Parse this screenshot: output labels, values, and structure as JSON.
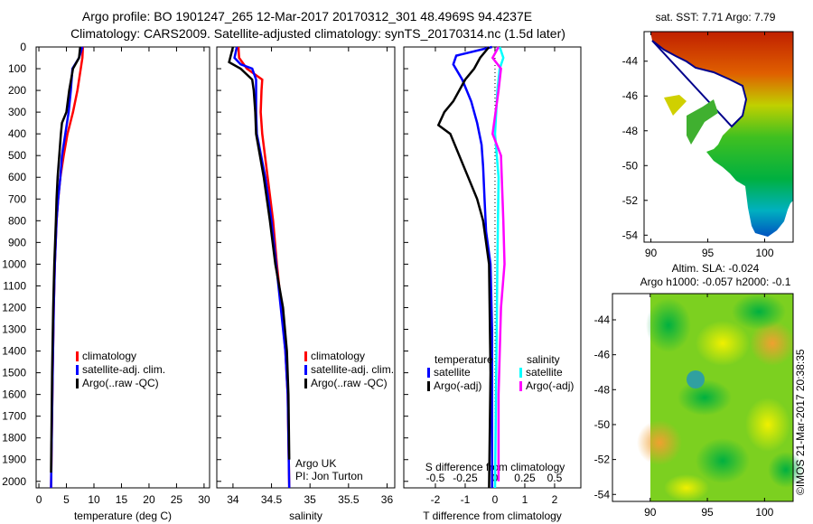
{
  "title_line1": "Argo profile: BO 1901247_265 12-Mar-2017 20170312_301 48.4969S 94.4237E",
  "title_line2": "Climatology: CARS2009. Satellite-adjusted climatology: synTS_20170314.nc (1.5d later)",
  "credit": "©IMOS 21-Mar-2017 20:38:35",
  "colors": {
    "climatology": "#ff0000",
    "satellite": "#0000ff",
    "argo": "#000000",
    "sal_satellite": "#00ffff",
    "sal_argo": "#ff00ff"
  },
  "chart_data": [
    {
      "type": "line",
      "name": "temperature",
      "xlabel": "temperature (deg C)",
      "ylabel": "",
      "xlim": [
        -0.5,
        31
      ],
      "ylim": [
        2030,
        0
      ],
      "xticks": [
        0,
        5,
        10,
        15,
        20,
        25,
        30
      ],
      "yticks": [
        0,
        100,
        200,
        300,
        400,
        500,
        600,
        700,
        800,
        900,
        1000,
        1100,
        1200,
        1300,
        1400,
        1500,
        1600,
        1700,
        1800,
        1900,
        2000
      ],
      "legend": [
        "climatology",
        "satellite-adj. clim.",
        "Argo(..raw -QC)"
      ],
      "series": [
        {
          "name": "climatology",
          "color": "#ff0000",
          "points": [
            [
              0,
              8
            ],
            [
              50,
              7.9
            ],
            [
              100,
              7.6
            ],
            [
              200,
              7.0
            ],
            [
              300,
              6.2
            ],
            [
              400,
              5.2
            ],
            [
              500,
              4.5
            ],
            [
              600,
              3.9
            ],
            [
              700,
              3.5
            ],
            [
              800,
              3.2
            ],
            [
              1000,
              2.9
            ],
            [
              1200,
              2.7
            ],
            [
              1500,
              2.5
            ],
            [
              2030,
              2.2
            ]
          ]
        },
        {
          "name": "satellite-adj. clim.",
          "color": "#0000ff",
          "points": [
            [
              0,
              7.9
            ],
            [
              50,
              7.3
            ],
            [
              100,
              6.1
            ],
            [
              200,
              5.8
            ],
            [
              300,
              5.4
            ],
            [
              400,
              4.8
            ],
            [
              500,
              4.2
            ],
            [
              600,
              3.9
            ],
            [
              700,
              3.5
            ],
            [
              800,
              3.2
            ],
            [
              1000,
              2.9
            ],
            [
              1200,
              2.7
            ],
            [
              1500,
              2.5
            ],
            [
              2030,
              2.2
            ]
          ]
        },
        {
          "name": "Argo(..raw -QC)",
          "color": "#000000",
          "points": [
            [
              0,
              7.5
            ],
            [
              50,
              7.3
            ],
            [
              100,
              6.2
            ],
            [
              200,
              5.5
            ],
            [
              300,
              5.0
            ],
            [
              350,
              4.2
            ],
            [
              400,
              4.0
            ],
            [
              500,
              3.7
            ],
            [
              600,
              3.4
            ],
            [
              700,
              3.2
            ],
            [
              800,
              3.1
            ],
            [
              1000,
              2.8
            ],
            [
              1200,
              2.6
            ],
            [
              1500,
              2.4
            ],
            [
              1960,
              2.2
            ]
          ]
        }
      ]
    },
    {
      "type": "line",
      "name": "salinity",
      "xlabel": "salinity",
      "xlim": [
        33.79,
        36.1
      ],
      "ylim": [
        2030,
        0
      ],
      "xticks": [
        34,
        34.5,
        35,
        35.5,
        36
      ],
      "legend": [
        "climatology",
        "satellite-adj. clim.",
        "Argo(..raw -QC)"
      ],
      "annotation": [
        "Argo UK",
        "PI: Jon Turton"
      ],
      "series": [
        {
          "name": "climatology",
          "color": "#ff0000",
          "points": [
            [
              0,
              34.07
            ],
            [
              50,
              34.08
            ],
            [
              100,
              34.18
            ],
            [
              150,
              34.38
            ],
            [
              200,
              34.37
            ],
            [
              300,
              34.36
            ],
            [
              400,
              34.38
            ],
            [
              600,
              34.45
            ],
            [
              800,
              34.52
            ],
            [
              1000,
              34.57
            ],
            [
              1200,
              34.63
            ],
            [
              1400,
              34.68
            ],
            [
              1600,
              34.71
            ],
            [
              2030,
              34.73
            ]
          ]
        },
        {
          "name": "satellite-adj. clim.",
          "color": "#0000ff",
          "points": [
            [
              0,
              34.05
            ],
            [
              50,
              34.02
            ],
            [
              80,
              34.1
            ],
            [
              100,
              34.25
            ],
            [
              150,
              34.3
            ],
            [
              300,
              34.3
            ],
            [
              400,
              34.31
            ],
            [
              600,
              34.42
            ],
            [
              800,
              34.5
            ],
            [
              1000,
              34.56
            ],
            [
              1200,
              34.62
            ],
            [
              1400,
              34.68
            ],
            [
              1600,
              34.71
            ],
            [
              2030,
              34.73
            ]
          ]
        },
        {
          "name": "Argo(..raw -QC)",
          "color": "#000000",
          "points": [
            [
              0,
              34.0
            ],
            [
              70,
              33.95
            ],
            [
              100,
              34.1
            ],
            [
              150,
              34.25
            ],
            [
              200,
              34.27
            ],
            [
              300,
              34.29
            ],
            [
              400,
              34.3
            ],
            [
              600,
              34.4
            ],
            [
              800,
              34.48
            ],
            [
              1000,
              34.55
            ],
            [
              1200,
              34.65
            ],
            [
              1400,
              34.7
            ],
            [
              1600,
              34.72
            ],
            [
              1900,
              34.73
            ]
          ]
        }
      ]
    },
    {
      "type": "line",
      "name": "difference",
      "xlabel": "T difference from climatology",
      "x2label": "S difference from climatology",
      "xlim": [
        -3.06,
        2.88
      ],
      "ylim": [
        2030,
        0
      ],
      "xticks": [
        -2,
        -1,
        0,
        1,
        2
      ],
      "x2ticks": [
        -0.5,
        -0.25,
        0,
        0.25,
        0.5
      ],
      "x2ticklabels": [
        "-0.5",
        "-0.25",
        "0",
        "0.25",
        "0.5"
      ],
      "legend_headers": [
        "temperature",
        "salinity"
      ],
      "legend": [
        "satellite",
        "Argo(-adj)",
        "satellite",
        "Argo(-adj)"
      ],
      "series": [
        {
          "name": "T satellite",
          "axis": "T",
          "color": "#0000ff",
          "points": [
            [
              0,
              -0.1
            ],
            [
              40,
              -1.3
            ],
            [
              80,
              -1.4
            ],
            [
              150,
              -1.1
            ],
            [
              250,
              -0.8
            ],
            [
              350,
              -0.6
            ],
            [
              450,
              -0.45
            ],
            [
              550,
              -0.4
            ],
            [
              700,
              -0.35
            ],
            [
              850,
              -0.3
            ],
            [
              1000,
              -0.15
            ],
            [
              1300,
              -0.1
            ],
            [
              2030,
              -0.1
            ]
          ]
        },
        {
          "name": "T Argo(-adj)",
          "axis": "T",
          "color": "#000000",
          "points": [
            [
              0,
              -0.2
            ],
            [
              50,
              -0.5
            ],
            [
              100,
              -0.7
            ],
            [
              150,
              -1.0
            ],
            [
              200,
              -1.2
            ],
            [
              250,
              -1.4
            ],
            [
              300,
              -1.7
            ],
            [
              360,
              -1.9
            ],
            [
              400,
              -1.5
            ],
            [
              500,
              -1.2
            ],
            [
              600,
              -0.9
            ],
            [
              700,
              -0.6
            ],
            [
              800,
              -0.4
            ],
            [
              1000,
              -0.2
            ],
            [
              1500,
              -0.15
            ],
            [
              2030,
              -0.2
            ]
          ]
        },
        {
          "name": "S satellite",
          "axis": "S",
          "color": "#00ffff",
          "points": [
            [
              0,
              0.04
            ],
            [
              50,
              0.07
            ],
            [
              100,
              0.04
            ],
            [
              200,
              0.02
            ],
            [
              400,
              0.0
            ],
            [
              600,
              0.03
            ],
            [
              1000,
              0.02
            ],
            [
              1500,
              0.01
            ],
            [
              2030,
              0.0
            ]
          ]
        },
        {
          "name": "S Argo(-adj)",
          "axis": "S",
          "color": "#ff00ff",
          "points": [
            [
              0,
              0.03
            ],
            [
              50,
              -0.02
            ],
            [
              100,
              0.05
            ],
            [
              200,
              0.03
            ],
            [
              400,
              -0.02
            ],
            [
              500,
              0.05
            ],
            [
              800,
              0.07
            ],
            [
              1000,
              0.08
            ],
            [
              1200,
              0.05
            ],
            [
              1600,
              0.03
            ],
            [
              2000,
              0.03
            ]
          ]
        }
      ]
    },
    {
      "type": "heatmap",
      "name": "sst-map",
      "title": "sat. SST: 7.71  Argo: 7.79",
      "xlim": [
        89.4,
        102.5
      ],
      "ylim": [
        -54.4,
        -42.3
      ],
      "xticks": [
        90,
        95,
        100
      ],
      "yticks": [
        -44,
        -46,
        -48,
        -50,
        -52,
        -54
      ]
    },
    {
      "type": "heatmap",
      "name": "sla-map",
      "title": [
        "Altim. SLA: -0.024",
        "Argo h1000: -0.057 h2000: -0.1"
      ],
      "xlim": [
        86.7,
        102.5
      ],
      "ylim": [
        -54.4,
        -42.5
      ],
      "xticks": [
        90,
        95,
        100
      ],
      "yticks": [
        -44,
        -46,
        -48,
        -50,
        -52,
        -54
      ]
    }
  ]
}
